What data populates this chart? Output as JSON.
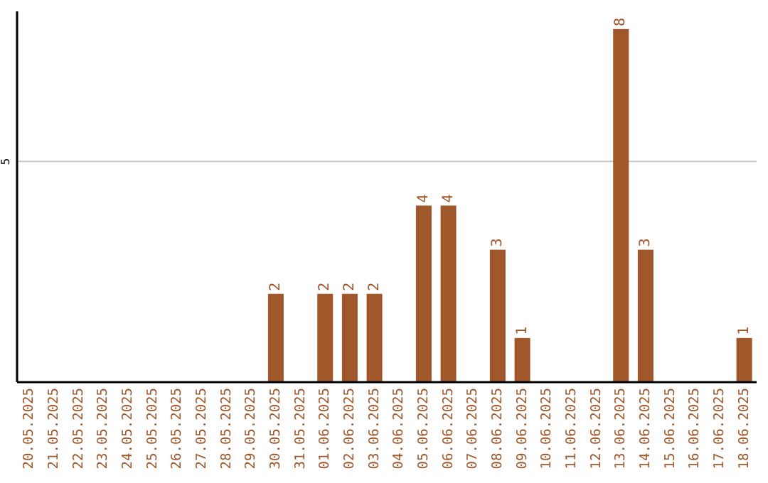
{
  "chart_data": {
    "type": "bar",
    "categories": [
      "20.05.2025",
      "21.05.2025",
      "22.05.2025",
      "23.05.2025",
      "24.05.2025",
      "25.05.2025",
      "26.05.2025",
      "27.05.2025",
      "28.05.2025",
      "29.05.2025",
      "30.05.2025",
      "31.05.2025",
      "01.06.2025",
      "02.06.2025",
      "03.06.2025",
      "04.06.2025",
      "05.06.2025",
      "06.06.2025",
      "07.06.2025",
      "08.06.2025",
      "09.06.2025",
      "10.06.2025",
      "11.06.2025",
      "12.06.2025",
      "13.06.2025",
      "14.06.2025",
      "15.06.2025",
      "16.06.2025",
      "17.06.2025",
      "18.06.2025"
    ],
    "values": [
      0,
      0,
      0,
      0,
      0,
      0,
      0,
      0,
      0,
      0,
      2,
      0,
      2,
      2,
      2,
      0,
      4,
      4,
      0,
      3,
      1,
      0,
      0,
      0,
      8,
      3,
      0,
      0,
      0,
      1
    ],
    "value_labels": [
      null,
      null,
      null,
      null,
      null,
      null,
      null,
      null,
      null,
      null,
      "2",
      null,
      "2",
      "2",
      "2",
      null,
      "4",
      "4",
      null,
      "3",
      "1",
      null,
      null,
      null,
      "8",
      "3",
      null,
      null,
      null,
      "1"
    ],
    "color": "#a0572a",
    "ylim": [
      0,
      8.4
    ],
    "yticks": [
      5
    ],
    "grid": "y"
  }
}
